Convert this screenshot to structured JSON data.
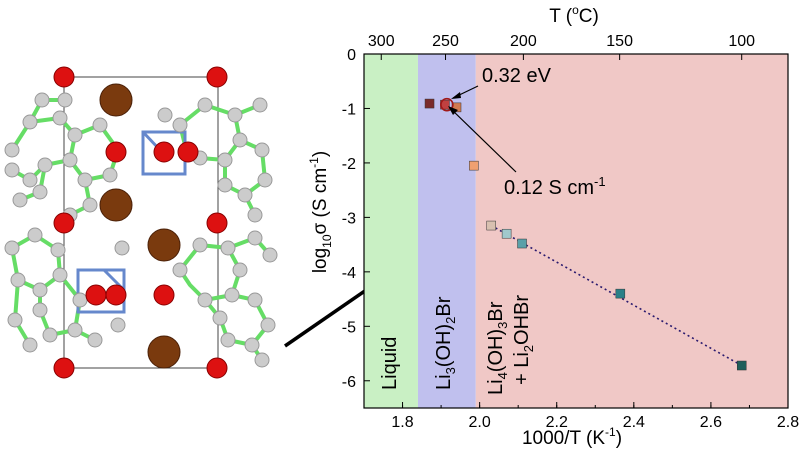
{
  "colors": {
    "liquid_region": "#c9f0c4",
    "li3_region": "#c0c0ee",
    "li4_region": "#f0c8c6",
    "fit_line": "#2a1a6e",
    "oxygen": "#dd1111",
    "bromine": "#7a3a0e",
    "hydrogen": "#c8c8c8",
    "bond": "#66dd66",
    "lithium_bond": "#6688cc"
  },
  "structure_panel": {
    "description_icon": "crystal-structure-icon"
  },
  "chart_data": {
    "type": "scatter",
    "xlabel": "1000/T (K",
    "xlabel_sup": "-1",
    "xlabel_end": ")",
    "ylabel": "log",
    "ylabel_sub": "10",
    "ylabel_sym": "σ (S cm",
    "ylabel_sup": "-1",
    "ylabel_end": ")",
    "top_axis_label": "T (",
    "top_axis_label_sup": "o",
    "top_axis_label_end": "C)",
    "xlim": [
      1.7,
      2.8
    ],
    "ylim": [
      -6.5,
      0
    ],
    "x_ticks": [
      "1.8",
      "2.0",
      "2.2",
      "2.4",
      "2.6",
      "2.8"
    ],
    "x_tick_values": [
      1.8,
      2.0,
      2.2,
      2.4,
      2.6,
      2.8
    ],
    "y_ticks": [
      "0",
      "-1",
      "-2",
      "-3",
      "-4",
      "-5",
      "-6"
    ],
    "y_tick_values": [
      0,
      -1,
      -2,
      -3,
      -4,
      -5,
      -6
    ],
    "top_ticks": [
      "300",
      "250",
      "200",
      "150",
      "100"
    ],
    "top_tick_celsius": [
      300,
      250,
      200,
      150,
      100
    ],
    "grid": false,
    "regions": [
      {
        "name": "Liquid",
        "x_start": 1.7,
        "x_end": 1.84
      },
      {
        "name": "Li3(OH)2Br",
        "x_start": 1.84,
        "x_end": 1.99
      },
      {
        "name": "Li4(OH)3Br + Li2OHBr",
        "x_start": 1.99,
        "x_end": 2.8
      }
    ],
    "region_labels": {
      "liquid": "Liquid",
      "li3_prefix": "Li",
      "li3_sub1": "3",
      "li3_mid": "(OH)",
      "li3_sub2": "2",
      "li3_end": "Br",
      "li4_prefix": "Li",
      "li4_sub1": "4",
      "li4_mid": "(OH)",
      "li4_sub2": "3",
      "li4_end": "Br",
      "plus_line_prefix": "+ Li",
      "plus_sub": "2",
      "plus_end": "OHBr"
    },
    "points": [
      {
        "x": 1.87,
        "y": -0.91,
        "color": "#7a2a2a"
      },
      {
        "x": 1.91,
        "y": -0.93,
        "color": "#c04040"
      },
      {
        "x": 1.94,
        "y": -0.98,
        "color": "#d07a50"
      },
      {
        "x": 1.985,
        "y": -2.05,
        "color": "#f0a070"
      },
      {
        "x": 2.03,
        "y": -3.15,
        "color": "#d8c0b0"
      },
      {
        "x": 2.07,
        "y": -3.3,
        "color": "#a0c8cc"
      },
      {
        "x": 2.11,
        "y": -3.48,
        "color": "#5aa0a8"
      },
      {
        "x": 2.365,
        "y": -4.4,
        "color": "#2a8088"
      },
      {
        "x": 2.68,
        "y": -5.72,
        "color": "#1e5e5a"
      }
    ],
    "fit_line": {
      "x": [
        2.03,
        2.68
      ],
      "y": [
        -3.15,
        -5.72
      ],
      "style": "dotted"
    },
    "circled_point": {
      "x": 1.915,
      "y": -0.93
    },
    "annotations": [
      {
        "text": "0.32 eV",
        "x": 2.0,
        "y": -0.5,
        "target_x": 1.92,
        "target_y": -0.9
      },
      {
        "text": "0.12 S cm",
        "sup": "-1",
        "x": 2.08,
        "y": -2.7,
        "target_x": 1.92,
        "target_y": -0.97
      }
    ]
  }
}
